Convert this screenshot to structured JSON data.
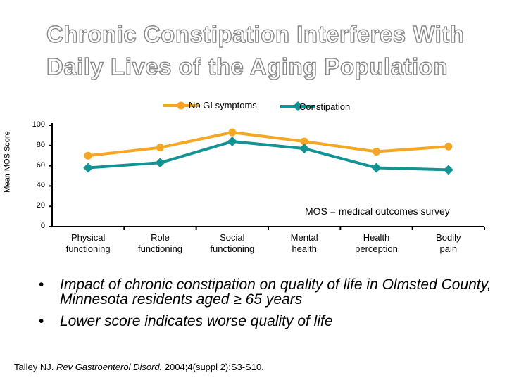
{
  "title_lines": [
    "Chronic Constipation Interferes With",
    "Daily Lives of the Aging Population"
  ],
  "chart_data": {
    "type": "line",
    "ylabel": "Mean MOS Score",
    "ylim": [
      0,
      100
    ],
    "yticks": [
      "0",
      "20",
      "40",
      "60",
      "80",
      "100"
    ],
    "categories": [
      [
        "Physical",
        "functioning"
      ],
      [
        "Role",
        "functioning"
      ],
      [
        "Social",
        "functioning"
      ],
      [
        "Mental",
        "health"
      ],
      [
        "Health",
        "perception"
      ],
      [
        "Bodily",
        "pain"
      ]
    ],
    "series": [
      {
        "name": "No GI symptoms",
        "color": "#f5a623",
        "marker": "circle",
        "values": [
          70,
          78,
          93,
          84,
          74,
          79
        ]
      },
      {
        "name": "Constipation",
        "color": "#139393",
        "marker": "diamond",
        "values": [
          58,
          63,
          84,
          77,
          58,
          56
        ]
      }
    ],
    "legend": "top",
    "annotation": "MOS = medical outcomes survey"
  },
  "bullets": [
    "Impact of chronic constipation on quality of life in Olmsted County, Minnesota residents aged ≥ 65 years",
    "Lower score indicates worse quality of life"
  ],
  "bullet_symbol": "•",
  "citation": {
    "authors": "Talley NJ. ",
    "journal": "Rev Gastroenterol Disord.",
    "rest": " 2004;4(suppl 2):S3-S10."
  }
}
